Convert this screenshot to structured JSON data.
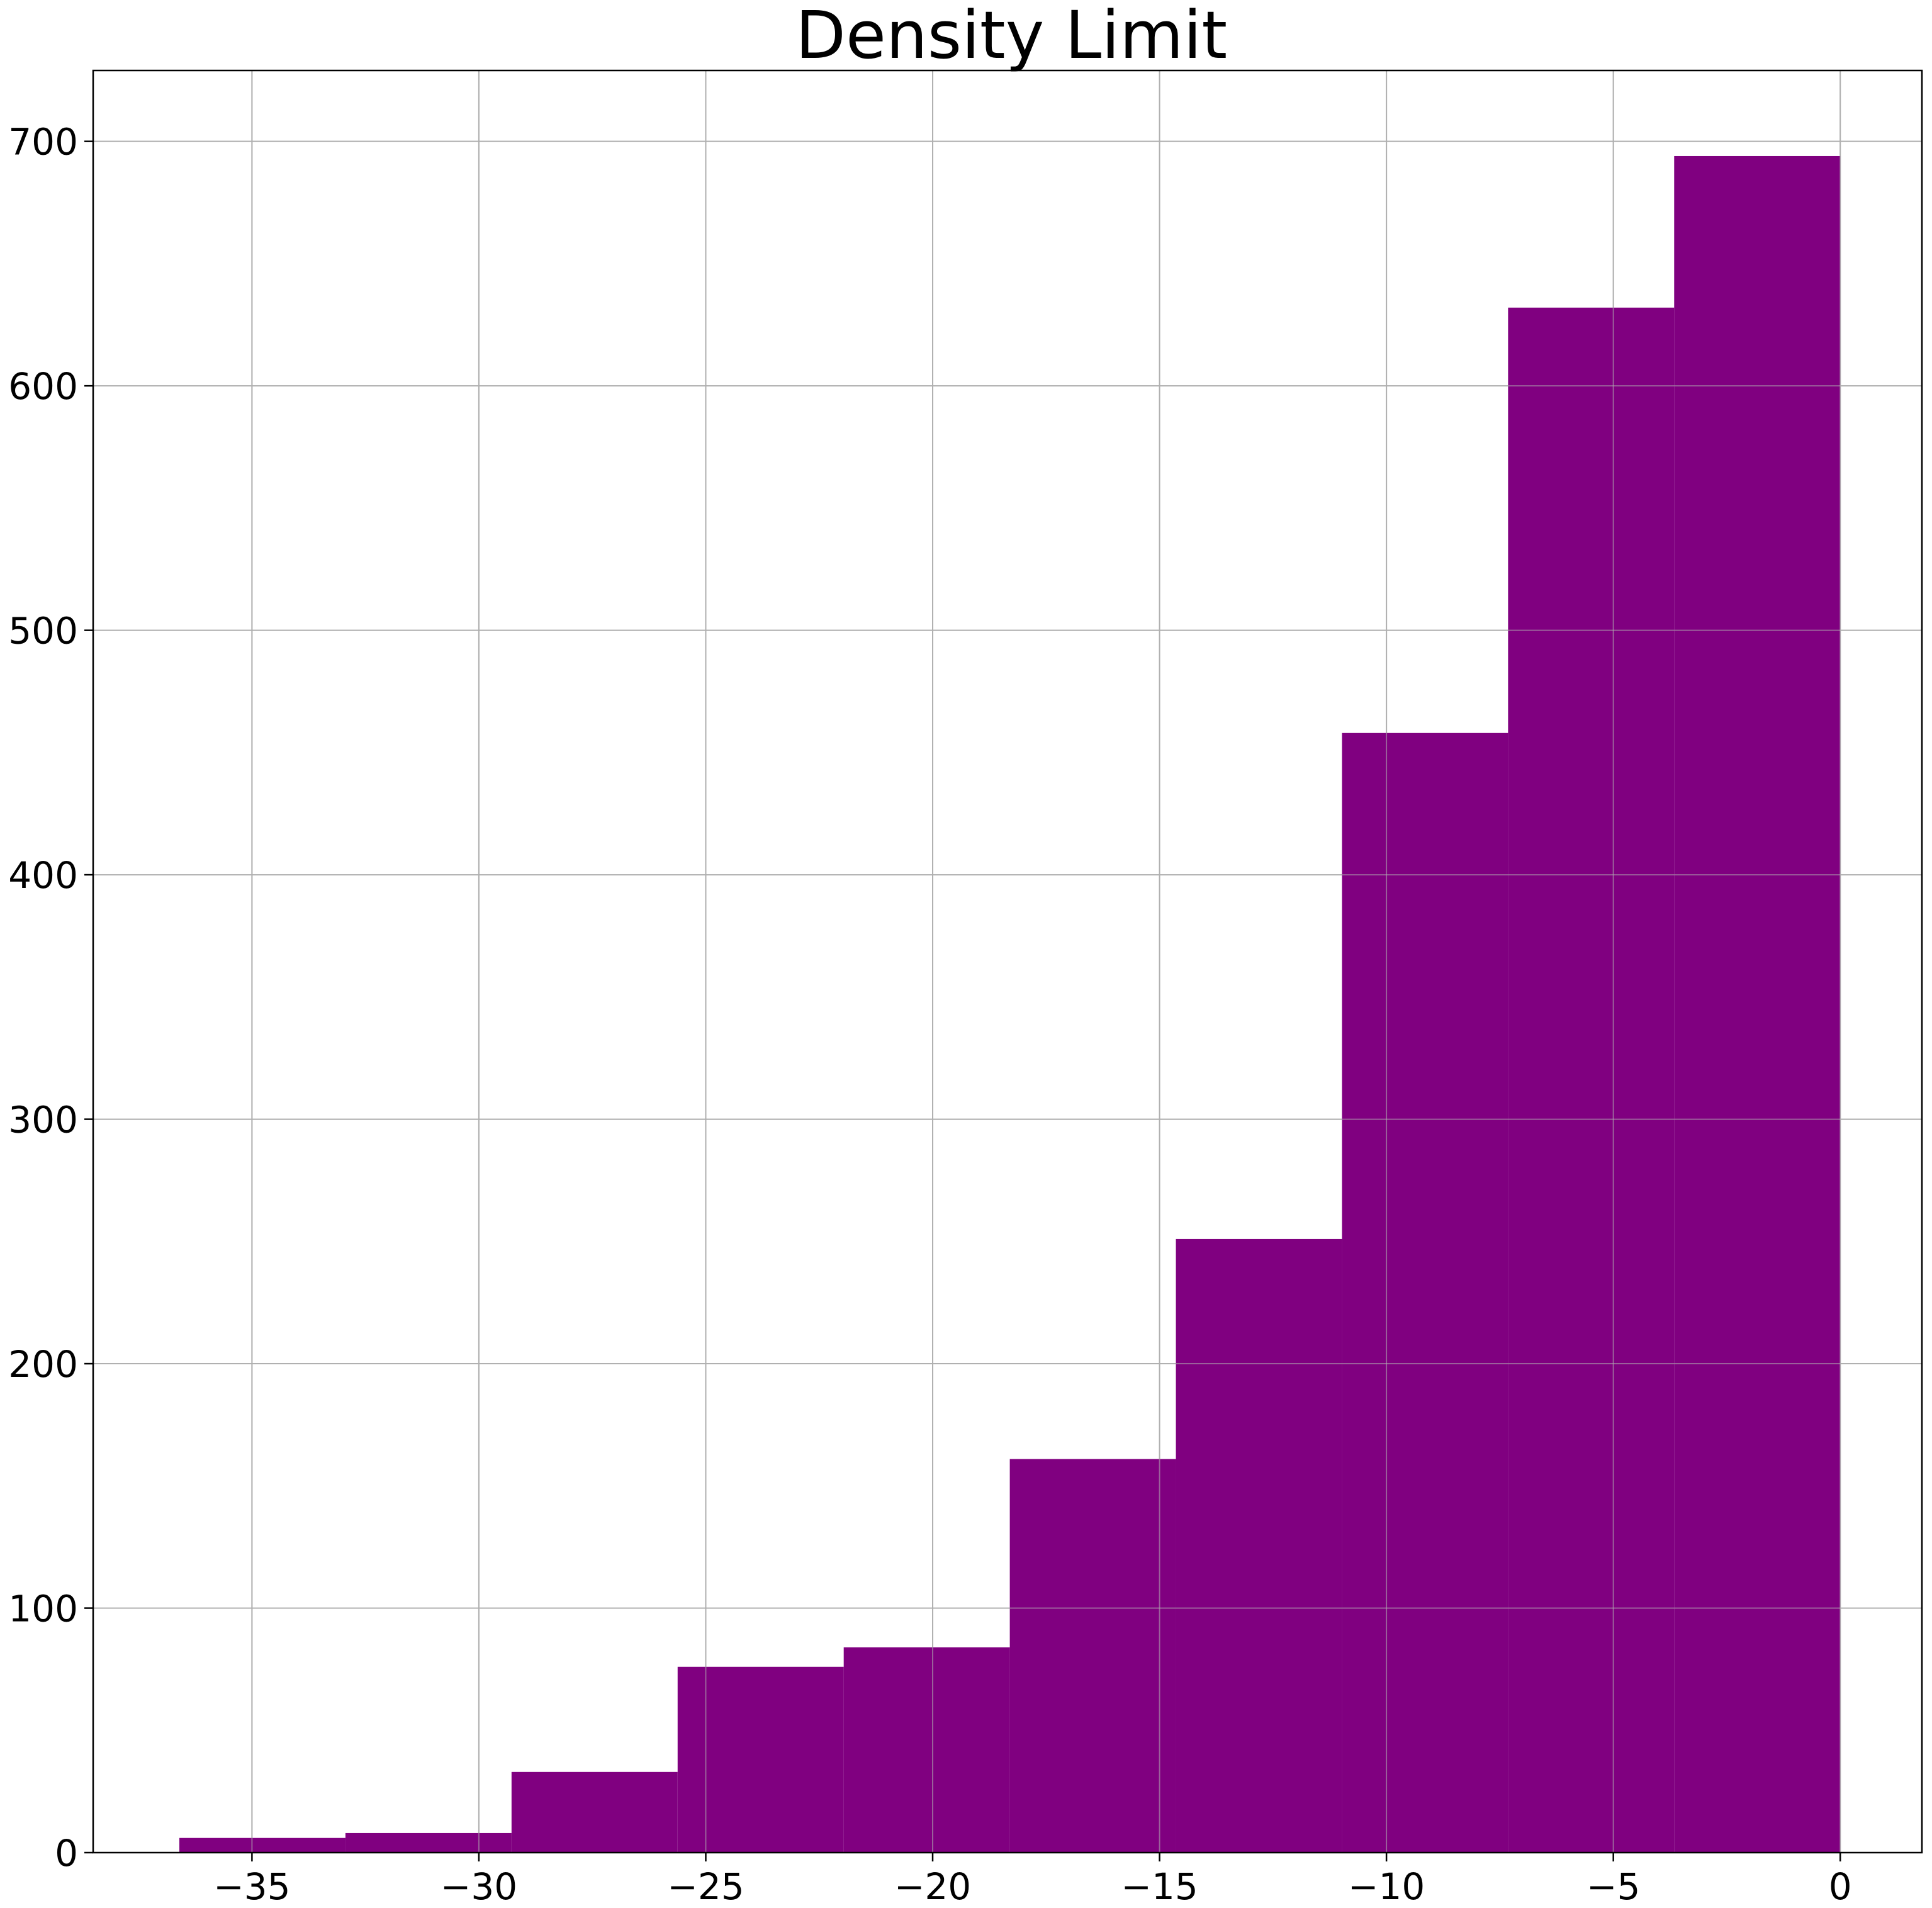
{
  "chart_data": {
    "type": "bar",
    "subtype": "histogram",
    "title": "Density Limit",
    "xlabel": "",
    "ylabel": "",
    "xlim": [
      -38.5,
      1.8
    ],
    "ylim": [
      0,
      729
    ],
    "grid": true,
    "bar_color": "#800080",
    "bin_edges": [
      -36.6,
      -32.94,
      -29.28,
      -25.62,
      -21.96,
      -18.3,
      -14.64,
      -10.98,
      -7.32,
      -3.66,
      0.0
    ],
    "values": [
      6,
      8,
      33,
      76,
      84,
      161,
      251,
      458,
      632,
      694
    ],
    "x_ticks": [
      {
        "value": -35,
        "label": "−35"
      },
      {
        "value": -30,
        "label": "−30"
      },
      {
        "value": -25,
        "label": "−25"
      },
      {
        "value": -20,
        "label": "−20"
      },
      {
        "value": -15,
        "label": "−15"
      },
      {
        "value": -10,
        "label": "−10"
      },
      {
        "value": -5,
        "label": "−5"
      },
      {
        "value": 0,
        "label": "0"
      }
    ],
    "y_ticks": [
      {
        "value": 0,
        "label": "0"
      },
      {
        "value": 100,
        "label": "100"
      },
      {
        "value": 200,
        "label": "200"
      },
      {
        "value": 300,
        "label": "300"
      },
      {
        "value": 400,
        "label": "400"
      },
      {
        "value": 500,
        "label": "500"
      },
      {
        "value": 600,
        "label": "600"
      },
      {
        "value": 700,
        "label": "700"
      }
    ]
  }
}
